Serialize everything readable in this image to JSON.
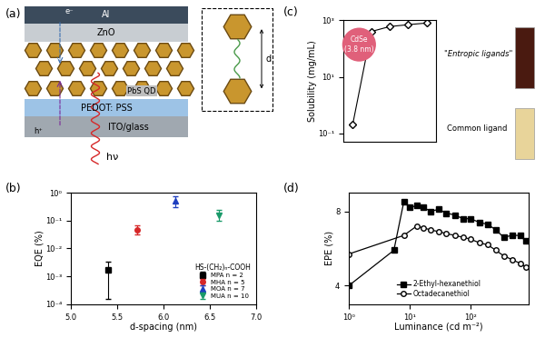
{
  "diagram": {
    "label": "(a)",
    "layers": [
      "Al",
      "ZnO",
      "PbS QD",
      "PEDOT: PSS",
      "ITO/glass"
    ],
    "carriers": {
      "electron": "e⁻",
      "hole": "h⁺",
      "light": "hν"
    },
    "inset_label": "d"
  },
  "chart_data": [
    {
      "label": "(b)",
      "type": "scatter",
      "log": "y",
      "x_label": "d-spacing (nm)",
      "y_label": "EQE (%)",
      "xlim": [
        5.0,
        7.0
      ],
      "xticks": [
        5.0,
        5.5,
        6.0,
        6.5,
        7.0
      ],
      "ylim": [
        0.0001,
        1.0
      ],
      "yticks": [
        {
          "value": 0.0001,
          "label": "10⁻⁴"
        },
        {
          "value": 0.001,
          "label": "10⁻³"
        },
        {
          "value": 0.01,
          "label": "10⁻²"
        },
        {
          "value": 0.1,
          "label": "10⁻¹"
        },
        {
          "value": 1.0,
          "label": "10⁰"
        }
      ],
      "legend": "lower right",
      "legend_title": "HS-(CH₂)ₙ-COOH",
      "series": [
        {
          "name": "MPA n = 2",
          "color": "#000000",
          "marker": "square",
          "x": [
            5.4
          ],
          "values": [
            0.0017
          ],
          "error_minus": [
            0.00155
          ],
          "error_plus": [
            0.0016
          ]
        },
        {
          "name": "MHA n = 5",
          "color": "#d62728",
          "marker": "circle",
          "x": [
            5.72
          ],
          "values": [
            0.048
          ],
          "error_minus": [
            0.015
          ],
          "error_plus": [
            0.017
          ]
        },
        {
          "name": "MOA n = 7",
          "color": "#1f3fbf",
          "marker": "triangle_up",
          "x": [
            6.13
          ],
          "values": [
            0.5
          ],
          "error_minus": [
            0.2
          ],
          "error_plus": [
            0.25
          ]
        },
        {
          "name": "MUA n = 10",
          "color": "#1a9a6a",
          "marker": "triangle_down",
          "x": [
            6.6
          ],
          "values": [
            0.15
          ],
          "error_minus": [
            0.05
          ],
          "error_plus": [
            0.1
          ]
        }
      ]
    },
    {
      "label": "(c)",
      "type": "line",
      "log": "y",
      "tick_labels": "y",
      "y_label": "Solubility (mg/mL)",
      "categories": [
        null,
        null,
        null,
        null,
        null
      ],
      "values": [
        0.2,
        400,
        600,
        700,
        800
      ],
      "color": "#000000",
      "marker": "diamond_open",
      "line_style": "solid",
      "ylim": [
        0.05,
        1000
      ],
      "yticks": [
        {
          "value": 0.1,
          "label": "10⁻¹"
        },
        {
          "value": 10,
          "label": "10¹"
        },
        {
          "value": 1000,
          "label": "10³"
        }
      ],
      "annotations": [
        "CdSe\n(3.8 nm)",
        "\"Entropic ligands\"",
        "Common ligand"
      ]
    },
    {
      "label": "(d)",
      "type": "line",
      "log": "x",
      "x_label": "Luminance (cd m⁻²)",
      "y_label": "EPE (%)",
      "xlim": [
        1,
        900
      ],
      "xticks": [
        {
          "value": 1,
          "label": "10⁰"
        },
        {
          "value": 10,
          "label": "10¹"
        },
        {
          "value": 100,
          "label": "10²"
        }
      ],
      "ylim": [
        3.0,
        9.0
      ],
      "yticks": [
        4,
        8
      ],
      "legend": "lower center",
      "series": [
        {
          "name": "2-Ethyl-hexanethiol",
          "color": "#000000",
          "marker": "square",
          "x": [
            1,
            5.5,
            8,
            10,
            13,
            17,
            22,
            30,
            40,
            55,
            75,
            100,
            140,
            190,
            260,
            350,
            480,
            650,
            800
          ],
          "values": [
            4.0,
            5.9,
            8.5,
            8.2,
            8.3,
            8.2,
            8.0,
            8.1,
            7.9,
            7.8,
            7.6,
            7.6,
            7.4,
            7.3,
            7.0,
            6.6,
            6.7,
            6.7,
            6.4
          ]
        },
        {
          "name": "Octadecanethiol",
          "color": "#000000",
          "marker": "circle_open",
          "x": [
            1,
            8,
            13,
            17,
            22,
            30,
            40,
            55,
            75,
            100,
            140,
            190,
            260,
            350,
            480,
            650,
            800
          ],
          "values": [
            5.7,
            6.7,
            7.2,
            7.1,
            7.0,
            6.9,
            6.8,
            6.7,
            6.6,
            6.5,
            6.3,
            6.2,
            5.9,
            5.6,
            5.4,
            5.2,
            5.0
          ]
        }
      ]
    }
  ]
}
